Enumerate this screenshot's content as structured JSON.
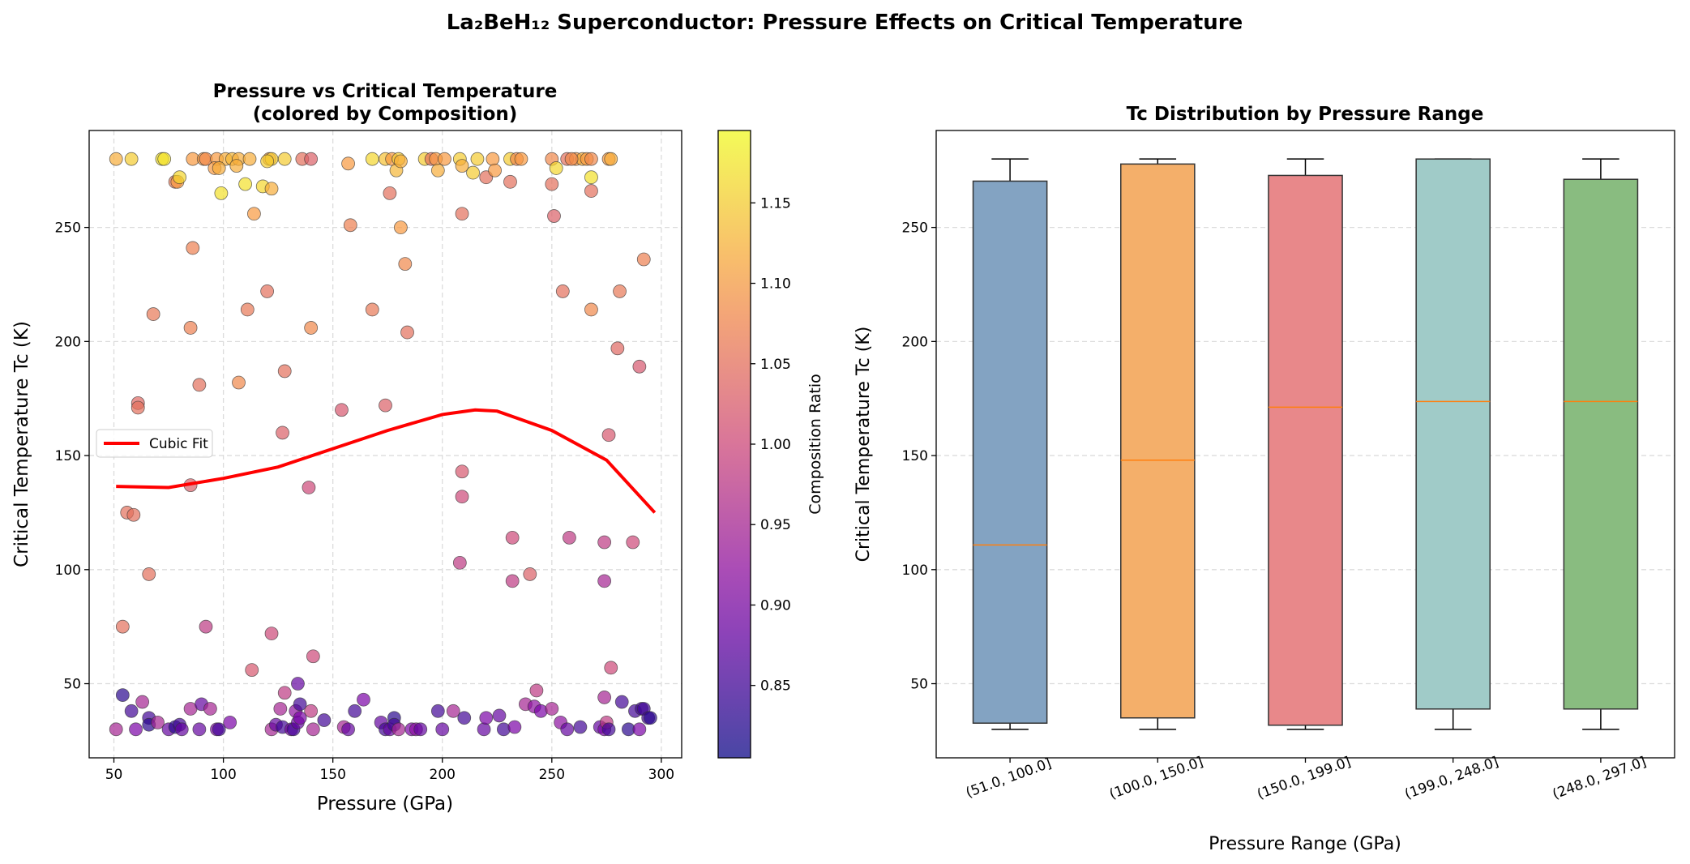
{
  "suptitle": "La₂BeH₁₂ Superconductor: Pressure Effects on Critical Temperature",
  "chart_data": [
    {
      "type": "scatter",
      "title_line1": "Pressure vs Critical Temperature",
      "title_line2": "(colored by Composition)",
      "xlabel": "Pressure (GPa)",
      "ylabel": "Critical Temperature Tc (K)",
      "xlim": [
        38.7,
        309.3
      ],
      "ylim": [
        17.5,
        292.5
      ],
      "xticks": [
        50,
        100,
        150,
        200,
        250,
        300
      ],
      "yticks": [
        50,
        100,
        150,
        200,
        250
      ],
      "grid": true,
      "colormap": "plasma",
      "colorbar": {
        "label": "Composition Ratio",
        "range": [
          0.805,
          1.195
        ],
        "ticks": [
          "0.85",
          "0.90",
          "0.95",
          "1.00",
          "1.05",
          "1.10",
          "1.15"
        ]
      },
      "legend": {
        "placement": "center-left",
        "entries": [
          "Cubic Fit"
        ]
      },
      "fit_color": "#ff0000",
      "fit_line": {
        "name": "Cubic Fit",
        "x": [
          51,
          75,
          100,
          125,
          150,
          175,
          200,
          215,
          225,
          250,
          275,
          297
        ],
        "y": [
          136.5,
          136,
          140,
          145,
          153,
          161,
          168,
          170,
          169.5,
          161,
          148,
          125
        ]
      },
      "points": [
        [
          51,
          280,
          1.12
        ],
        [
          58,
          280,
          1.15
        ],
        [
          72,
          280,
          1.17
        ],
        [
          73,
          280,
          1.17
        ],
        [
          86,
          280,
          1.1
        ],
        [
          91,
          280,
          1.1
        ],
        [
          92,
          280,
          1.08
        ],
        [
          97,
          280,
          1.1
        ],
        [
          101,
          280,
          1.12
        ],
        [
          104,
          280,
          1.13
        ],
        [
          107,
          280,
          1.12
        ],
        [
          112,
          280,
          1.12
        ],
        [
          121,
          280,
          1.1
        ],
        [
          122,
          280,
          1.15
        ],
        [
          128,
          280,
          1.15
        ],
        [
          136,
          280,
          1.05
        ],
        [
          140,
          280,
          1.03
        ],
        [
          168,
          280,
          1.16
        ],
        [
          174,
          280,
          1.14
        ],
        [
          177,
          280,
          1.1
        ],
        [
          180,
          280,
          1.15
        ],
        [
          192,
          280,
          1.15
        ],
        [
          195,
          280,
          1.05
        ],
        [
          197,
          280,
          1.1
        ],
        [
          201,
          280,
          1.1
        ],
        [
          208,
          280,
          1.15
        ],
        [
          216,
          280,
          1.15
        ],
        [
          223,
          280,
          1.1
        ],
        [
          231,
          280,
          1.15
        ],
        [
          234,
          280,
          1.08
        ],
        [
          236,
          280,
          1.1
        ],
        [
          250,
          280,
          1.08
        ],
        [
          257,
          280,
          1.05
        ],
        [
          261,
          280,
          1.1
        ],
        [
          264,
          280,
          1.12
        ],
        [
          266,
          280,
          1.1
        ],
        [
          268,
          280,
          1.08
        ],
        [
          276,
          280,
          1.1
        ],
        [
          277,
          280,
          1.12
        ],
        [
          78,
          270,
          1.06
        ],
        [
          79,
          270,
          1.1
        ],
        [
          80,
          272,
          1.16
        ],
        [
          96,
          276,
          1.1
        ],
        [
          98,
          276,
          1.12
        ],
        [
          99,
          265,
          1.17
        ],
        [
          106,
          277,
          1.12
        ],
        [
          110,
          269,
          1.17
        ],
        [
          118,
          268,
          1.16
        ],
        [
          120,
          279,
          1.15
        ],
        [
          122,
          267,
          1.12
        ],
        [
          114,
          256,
          1.1
        ],
        [
          157,
          278,
          1.1
        ],
        [
          176,
          265,
          1.05
        ],
        [
          179,
          275,
          1.13
        ],
        [
          181,
          279,
          1.12
        ],
        [
          181,
          250,
          1.1
        ],
        [
          183,
          234,
          1.08
        ],
        [
          198,
          275,
          1.12
        ],
        [
          209,
          277,
          1.12
        ],
        [
          209,
          256,
          1.05
        ],
        [
          214,
          274,
          1.15
        ],
        [
          220,
          272,
          1.05
        ],
        [
          224,
          275,
          1.1
        ],
        [
          231,
          270,
          1.05
        ],
        [
          250,
          269,
          1.05
        ],
        [
          252,
          276,
          1.16
        ],
        [
          251,
          255,
          1.03
        ],
        [
          259,
          280,
          1.08
        ],
        [
          268,
          266,
          1.05
        ],
        [
          268,
          272,
          1.17
        ],
        [
          292,
          236,
          1.07
        ],
        [
          158,
          251,
          1.07
        ],
        [
          86,
          241,
          1.07
        ],
        [
          68,
          212,
          1.06
        ],
        [
          85,
          206,
          1.07
        ],
        [
          111,
          214,
          1.06
        ],
        [
          120,
          222,
          1.05
        ],
        [
          140,
          206,
          1.08
        ],
        [
          168,
          214,
          1.06
        ],
        [
          184,
          204,
          1.05
        ],
        [
          255,
          222,
          1.05
        ],
        [
          268,
          214,
          1.08
        ],
        [
          281,
          222,
          1.06
        ],
        [
          280,
          197,
          1.04
        ],
        [
          290,
          189,
          1.02
        ],
        [
          89,
          181,
          1.05
        ],
        [
          107,
          182,
          1.08
        ],
        [
          128,
          187,
          1.05
        ],
        [
          61,
          173,
          1.04
        ],
        [
          61,
          171,
          1.05
        ],
        [
          174,
          172,
          1.03
        ],
        [
          154,
          170,
          1.02
        ],
        [
          127,
          160,
          1.03
        ],
        [
          276,
          159,
          1.02
        ],
        [
          85,
          137,
          1.03
        ],
        [
          139,
          136,
          1.0
        ],
        [
          209,
          143,
          1.02
        ],
        [
          209,
          132,
          1.0
        ],
        [
          56,
          125,
          1.05
        ],
        [
          59,
          124,
          1.05
        ],
        [
          232,
          114,
          1.0
        ],
        [
          258,
          114,
          0.98
        ],
        [
          274,
          112,
          0.98
        ],
        [
          287,
          112,
          1.0
        ],
        [
          208,
          103,
          0.98
        ],
        [
          240,
          98,
          1.03
        ],
        [
          66,
          98,
          1.05
        ],
        [
          232,
          95,
          0.98
        ],
        [
          274,
          95,
          0.95
        ],
        [
          54,
          75,
          1.05
        ],
        [
          92,
          75,
          0.98
        ],
        [
          122,
          72,
          1.0
        ],
        [
          141,
          62,
          1.0
        ],
        [
          113,
          56,
          1.02
        ],
        [
          277,
          57,
          1.0
        ],
        [
          54,
          45,
          0.83
        ],
        [
          58,
          38,
          0.85
        ],
        [
          60,
          30,
          0.9
        ],
        [
          63,
          42,
          0.95
        ],
        [
          66,
          35,
          0.85
        ],
        [
          66,
          32,
          0.83
        ],
        [
          70,
          33,
          0.95
        ],
        [
          75,
          30,
          0.88
        ],
        [
          78,
          31,
          0.83
        ],
        [
          80,
          32,
          0.85
        ],
        [
          81,
          30,
          0.88
        ],
        [
          51,
          30,
          0.95
        ],
        [
          85,
          39,
          0.95
        ],
        [
          89,
          30,
          0.88
        ],
        [
          90,
          41,
          0.88
        ],
        [
          94,
          39,
          0.95
        ],
        [
          97,
          30,
          0.9
        ],
        [
          98,
          30,
          0.85
        ],
        [
          103,
          33,
          0.9
        ],
        [
          122,
          30,
          0.95
        ],
        [
          124,
          32,
          0.88
        ],
        [
          126,
          39,
          0.95
        ],
        [
          128,
          46,
          0.98
        ],
        [
          127,
          31,
          0.85
        ],
        [
          131,
          30,
          0.9
        ],
        [
          132,
          30,
          0.85
        ],
        [
          133,
          38,
          0.92
        ],
        [
          134,
          33,
          0.88
        ],
        [
          134,
          50,
          0.88
        ],
        [
          135,
          41,
          0.85
        ],
        [
          135,
          35,
          0.9
        ],
        [
          140,
          38,
          0.98
        ],
        [
          141,
          30,
          0.95
        ],
        [
          146,
          34,
          0.85
        ],
        [
          155,
          31,
          0.95
        ],
        [
          157,
          30,
          0.88
        ],
        [
          160,
          38,
          0.85
        ],
        [
          164,
          43,
          0.9
        ],
        [
          172,
          33,
          0.88
        ],
        [
          174,
          30,
          0.85
        ],
        [
          176,
          30,
          0.88
        ],
        [
          178,
          35,
          0.83
        ],
        [
          178,
          32,
          0.85
        ],
        [
          180,
          30,
          0.95
        ],
        [
          186,
          30,
          0.9
        ],
        [
          188,
          30,
          0.92
        ],
        [
          190,
          30,
          0.88
        ],
        [
          198,
          38,
          0.85
        ],
        [
          200,
          30,
          0.88
        ],
        [
          205,
          38,
          0.95
        ],
        [
          210,
          35,
          0.85
        ],
        [
          219,
          30,
          0.88
        ],
        [
          220,
          35,
          0.9
        ],
        [
          226,
          36,
          0.88
        ],
        [
          228,
          30,
          0.85
        ],
        [
          233,
          31,
          0.9
        ],
        [
          238,
          41,
          0.95
        ],
        [
          242,
          40,
          0.92
        ],
        [
          243,
          47,
          0.98
        ],
        [
          245,
          38,
          0.9
        ],
        [
          250,
          39,
          0.95
        ],
        [
          254,
          33,
          0.92
        ],
        [
          257,
          30,
          0.88
        ],
        [
          263,
          31,
          0.85
        ],
        [
          272,
          31,
          0.88
        ],
        [
          274,
          44,
          0.95
        ],
        [
          274,
          30,
          0.9
        ],
        [
          275,
          33,
          0.98
        ],
        [
          282,
          42,
          0.85
        ],
        [
          285,
          30,
          0.83
        ],
        [
          288,
          38,
          0.85
        ],
        [
          291,
          39,
          0.85
        ],
        [
          292,
          39,
          0.85
        ],
        [
          294,
          35,
          0.85
        ],
        [
          295,
          35,
          0.83
        ],
        [
          290,
          30,
          0.9
        ],
        [
          276,
          30,
          0.85
        ]
      ]
    },
    {
      "type": "box",
      "title": "Tc Distribution by Pressure Range",
      "xlabel": "Pressure Range (GPa)",
      "ylabel": "Critical Temperature Tc (K)",
      "ylim": [
        17.5,
        292.5
      ],
      "yticks": [
        50,
        100,
        150,
        200,
        250
      ],
      "grid": "y",
      "median_color": "#ff7f0e",
      "categories": [
        "(51.0, 100.0]",
        "(100.0, 150.0]",
        "(150.0, 199.0]",
        "(199.0, 248.0]",
        "(248.0, 297.0]"
      ],
      "boxes": [
        {
          "whisker_low": 30,
          "q1": 32.7,
          "median": 110.8,
          "q3": 270.3,
          "whisker_high": 280,
          "color": "#83a3c2"
        },
        {
          "whisker_low": 30,
          "q1": 35.0,
          "median": 148.0,
          "q3": 277.8,
          "whisker_high": 280,
          "color": "#f4af6a"
        },
        {
          "whisker_low": 30,
          "q1": 31.8,
          "median": 171.2,
          "q3": 272.8,
          "whisker_high": 280,
          "color": "#e8888a"
        },
        {
          "whisker_low": 30,
          "q1": 38.9,
          "median": 173.7,
          "q3": 280.0,
          "whisker_high": 280,
          "color": "#a0cbc8"
        },
        {
          "whisker_low": 30,
          "q1": 38.9,
          "median": 173.7,
          "q3": 271.1,
          "whisker_high": 280,
          "color": "#89bc80"
        }
      ]
    }
  ]
}
